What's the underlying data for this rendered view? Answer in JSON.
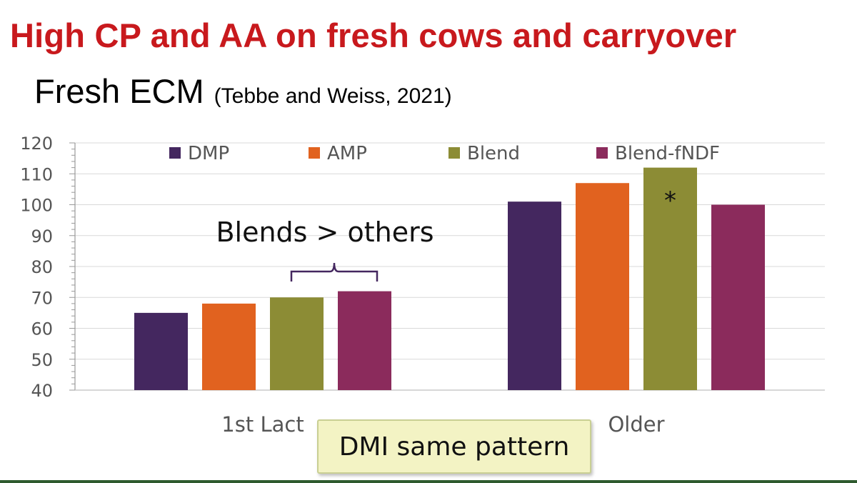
{
  "slide": {
    "title": "High CP and AA on fresh cows and carryover",
    "subtitle_main": "Fresh ECM",
    "subtitle_cite": "(Tebbe and Weiss, 2021)"
  },
  "callout": {
    "text": "DMI same pattern"
  },
  "chart_data": {
    "type": "bar",
    "categories": [
      "1st Lact",
      "Older"
    ],
    "series": [
      {
        "name": "DMP",
        "color": "#44275f",
        "values": [
          65,
          101
        ]
      },
      {
        "name": "AMP",
        "color": "#e1621f",
        "values": [
          68,
          107
        ]
      },
      {
        "name": "Blend",
        "color": "#8c8c35",
        "values": [
          70,
          112
        ]
      },
      {
        "name": "Blend-fNDF",
        "color": "#8b2b5c",
        "values": [
          72,
          100
        ]
      }
    ],
    "ylim": [
      40,
      120
    ],
    "yticks": [
      40,
      50,
      60,
      70,
      80,
      90,
      100,
      110,
      120
    ],
    "grid": true,
    "legend_position": "top",
    "annotations": [
      {
        "text": "Blends > others",
        "kind": "brace",
        "category_index": 0,
        "series_from": 2,
        "series_to": 3
      },
      {
        "text": "*",
        "kind": "marker",
        "category_index": 1,
        "series_index": 2
      }
    ]
  }
}
